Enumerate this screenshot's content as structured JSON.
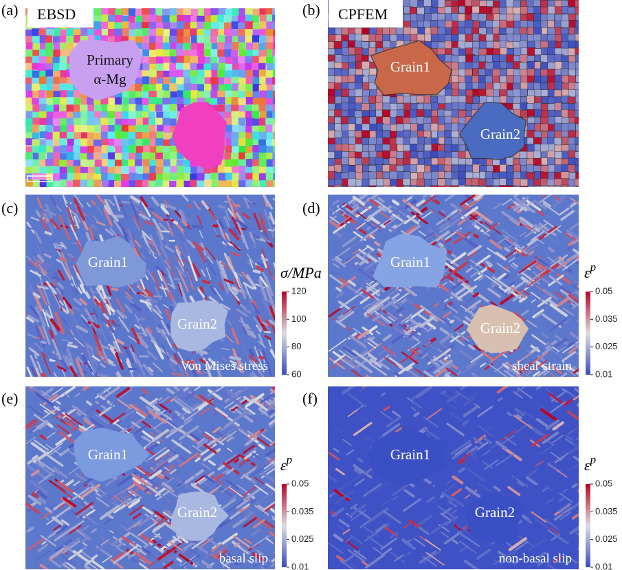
{
  "panels": [
    {
      "label": "(a)",
      "title": "EBSD",
      "annotations": [
        "Primary",
        "α-Mg"
      ]
    },
    {
      "label": "(b)",
      "title": "CPFEM",
      "annotations": [
        "Grain1",
        "Grain2"
      ]
    },
    {
      "label": "(c)",
      "annotations": [
        "Grain1",
        "Grain2"
      ],
      "caption": "Von Mises stress",
      "colorbar": {
        "title": "σ/MPa",
        "ticks": [
          "120",
          "100",
          "80",
          "60"
        ]
      }
    },
    {
      "label": "(d)",
      "annotations": [
        "Grain1",
        "Grain2"
      ],
      "caption": "shear strain",
      "colorbar": {
        "title": "ε",
        "title_sup": "p",
        "ticks": [
          "0.05",
          "0.035",
          "0.025",
          "0.01"
        ]
      }
    },
    {
      "label": "(e)",
      "annotations": [
        "Grain1",
        "Grain2"
      ],
      "caption": "basal slip",
      "colorbar": {
        "title": "ε",
        "title_sup": "p",
        "ticks": [
          "0.05",
          "0.035",
          "0.025",
          "0.01"
        ]
      }
    },
    {
      "label": "(f)",
      "annotations": [
        "Grain1",
        "Grain2"
      ],
      "caption": "non-basal slip",
      "colorbar": {
        "title": "ε",
        "title_sup": "p",
        "ticks": [
          "0.05",
          "0.035",
          "0.025",
          "0.01"
        ]
      }
    }
  ]
}
